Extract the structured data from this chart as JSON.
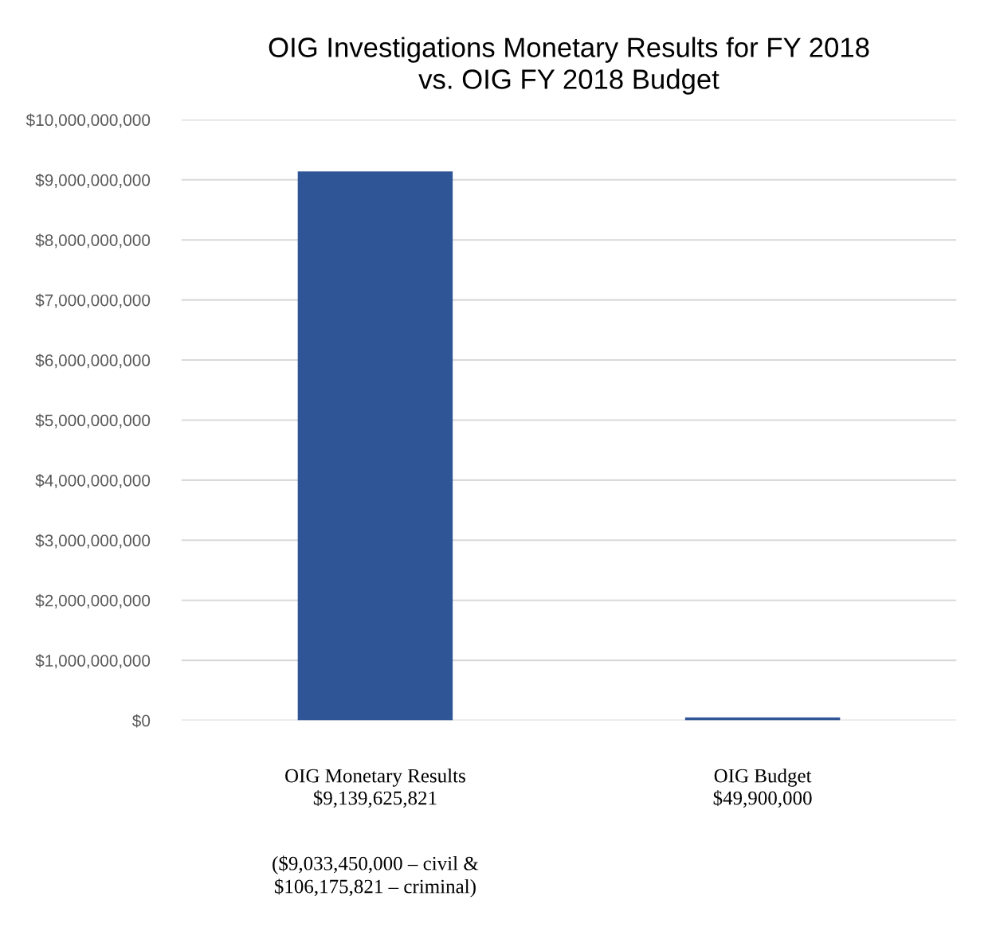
{
  "chart_data": {
    "type": "bar",
    "title": "OIG Investigations Monetary Results for FY 2018\nvs. OIG FY 2018 Budget",
    "categories": [
      "OIG Monetary Results",
      "OIG Budget"
    ],
    "values": [
      9139625821,
      49900000
    ],
    "value_labels": [
      "$9,139,625,821",
      "$49,900,000"
    ],
    "color": "#2f5597",
    "ylim": [
      0,
      10000000000
    ],
    "yticks": [
      {
        "value": 0,
        "label": "$0"
      },
      {
        "value": 1000000000,
        "label": "$1,000,000,000"
      },
      {
        "value": 2000000000,
        "label": "$2,000,000,000"
      },
      {
        "value": 3000000000,
        "label": "$3,000,000,000"
      },
      {
        "value": 4000000000,
        "label": "$4,000,000,000"
      },
      {
        "value": 5000000000,
        "label": "$5,000,000,000"
      },
      {
        "value": 6000000000,
        "label": "$6,000,000,000"
      },
      {
        "value": 7000000000,
        "label": "$7,000,000,000"
      },
      {
        "value": 8000000000,
        "label": "$8,000,000,000"
      },
      {
        "value": 9000000000,
        "label": "$9,000,000,000"
      },
      {
        "value": 10000000000,
        "label": "$10,000,000,000"
      }
    ],
    "grid": "y",
    "annotations": [
      "($9,033,450,000 – civil &\n$106,175,821 – criminal)"
    ]
  }
}
